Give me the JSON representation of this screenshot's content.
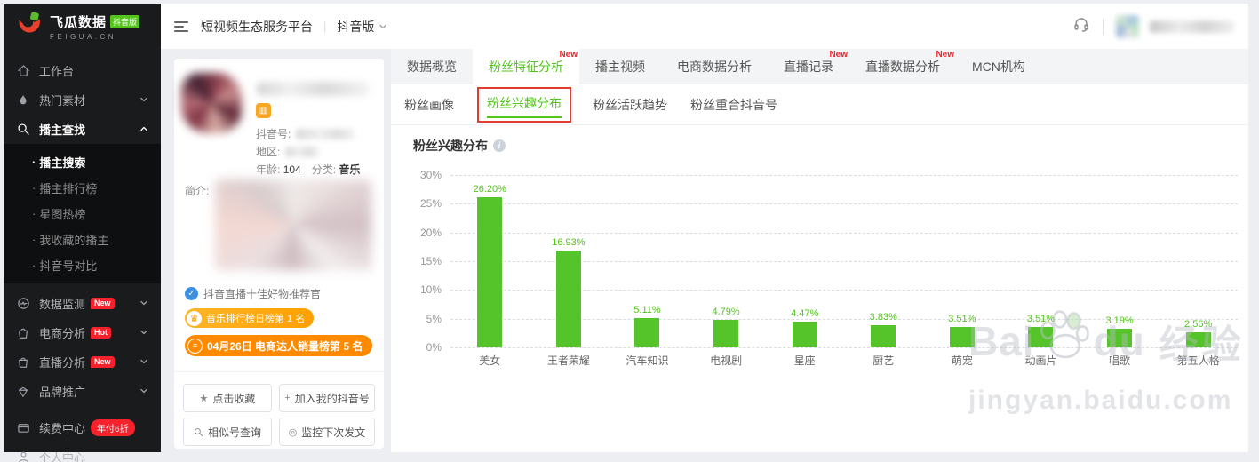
{
  "brand": {
    "name": "飞瓜数据",
    "edition_badge": "抖音版",
    "domain": "FEIGUA.CN"
  },
  "topbar": {
    "platform": "短视频生态服务平台",
    "divider": "|",
    "edition": "抖音版"
  },
  "sidebar": {
    "items": [
      {
        "label": "工作台",
        "icon": "home-icon"
      },
      {
        "label": "热门素材",
        "icon": "flame-icon"
      },
      {
        "label": "播主查找",
        "icon": "search-icon"
      },
      {
        "label": "播主搜索"
      },
      {
        "label": "播主排行榜"
      },
      {
        "label": "星图热榜"
      },
      {
        "label": "我收藏的播主"
      },
      {
        "label": "抖音号对比"
      },
      {
        "label": "数据监测",
        "icon": "monitor-icon",
        "badge": "New"
      },
      {
        "label": "电商分析",
        "icon": "bag-icon",
        "badge": "Hot"
      },
      {
        "label": "直播分析",
        "icon": "bag-icon",
        "badge": "New"
      },
      {
        "label": "品牌推广",
        "icon": "gem-icon"
      },
      {
        "label": "续费中心",
        "icon": "card-icon",
        "badge": "年付6折"
      },
      {
        "label": "个人中心",
        "icon": "person-icon"
      }
    ]
  },
  "profile": {
    "douyin_id_label": "抖音号:",
    "region_label": "地区:",
    "age_label": "年龄:",
    "age_value": "104",
    "category_label": "分类:",
    "category_value": "音乐",
    "intro_label": "简介:",
    "verified_title": "抖音直播十佳好物推荐官",
    "rank_badge_1": "音乐排行榜日榜第 1 名",
    "rank_badge_2": "04月26日 电商达人销量榜第 5 名",
    "actions": {
      "favorite": "点击收藏",
      "add_account": "加入我的抖音号",
      "similar": "相似号查询",
      "monitor": "监控下次发文"
    }
  },
  "tabs": [
    {
      "label": "数据概览"
    },
    {
      "label": "粉丝特征分析",
      "new": "New",
      "active": true
    },
    {
      "label": "播主视频"
    },
    {
      "label": "电商数据分析"
    },
    {
      "label": "直播记录",
      "new": "New"
    },
    {
      "label": "直播数据分析",
      "new": "New"
    },
    {
      "label": "MCN机构"
    }
  ],
  "subtabs": [
    {
      "label": "粉丝画像"
    },
    {
      "label": "粉丝兴趣分布",
      "active": true,
      "highlighted": true
    },
    {
      "label": "粉丝活跃趋势"
    },
    {
      "label": "粉丝重合抖音号"
    }
  ],
  "chart_data": {
    "type": "bar",
    "title": "粉丝兴趣分布",
    "categories": [
      "美女",
      "王者荣耀",
      "汽车知识",
      "电视剧",
      "星座",
      "厨艺",
      "萌宠",
      "动画片",
      "唱歌",
      "第五人格"
    ],
    "values": [
      26.2,
      16.93,
      5.11,
      4.79,
      4.47,
      3.83,
      3.51,
      3.51,
      3.19,
      2.56
    ],
    "labels": [
      "26.20%",
      "16.93%",
      "5.11%",
      "4.79%",
      "4.47%",
      "3.83%",
      "3.51%",
      "3.51%",
      "3.19%",
      "2.56%"
    ],
    "ylim": [
      0,
      30
    ],
    "yticks": [
      "30%",
      "25%",
      "20%",
      "15%",
      "10%",
      "5%",
      "0%"
    ],
    "grid": "dashed",
    "legend": "none",
    "bar_color": "#55c42b",
    "label_color": "#52c41a",
    "xlabel": "",
    "ylabel": ""
  },
  "watermark": {
    "part1": "Bai",
    "part2": "du",
    "part3": "经验",
    "url": "jingyan.baidu.com"
  },
  "colors": {
    "accent_green": "#52c41a",
    "badge_red": "#f5222d",
    "rank_orange": "#ffa700",
    "rank_orange_dark": "#ff8a00"
  }
}
